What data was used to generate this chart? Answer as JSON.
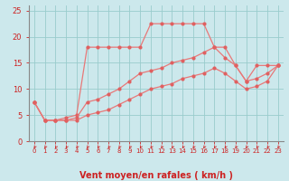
{
  "xlabel": "Vent moyen/en rafales ( km/h )",
  "xlim": [
    -0.5,
    23.5
  ],
  "ylim": [
    0,
    26
  ],
  "yticks": [
    0,
    5,
    10,
    15,
    20,
    25
  ],
  "xticks": [
    0,
    1,
    2,
    3,
    4,
    5,
    6,
    7,
    8,
    9,
    10,
    11,
    12,
    13,
    14,
    15,
    16,
    17,
    18,
    19,
    20,
    21,
    22,
    23
  ],
  "bg_color": "#cce8ec",
  "grid_color": "#99cccc",
  "line_color": "#e87878",
  "marker_color": "#e06060",
  "line1_y": [
    7.5,
    4,
    4,
    4.5,
    5,
    18,
    18,
    18,
    18,
    18,
    18,
    22.5,
    22.5,
    22.5,
    22.5,
    22.5,
    22.5,
    18,
    18,
    14.5,
    11.5,
    14.5,
    14.5,
    14.5
  ],
  "line2_y": [
    7.5,
    4,
    4,
    4,
    4.5,
    7.5,
    8,
    9,
    10,
    11.5,
    13,
    13.5,
    14,
    15,
    15.5,
    16,
    17,
    18,
    16,
    14.5,
    11.5,
    12,
    13,
    14.5
  ],
  "line3_y": [
    7.5,
    4,
    4,
    4,
    4,
    5,
    5.5,
    6,
    7,
    8,
    9,
    10,
    10.5,
    11,
    12,
    12.5,
    13,
    14,
    13,
    11.5,
    10,
    10.5,
    11.5,
    14.5
  ],
  "tick_color": "#cc2222",
  "spine_color": "#888888",
  "xlabel_color": "#cc2222",
  "xlabel_fontsize": 7,
  "tick_fontsize": 5,
  "ytick_fontsize": 6
}
